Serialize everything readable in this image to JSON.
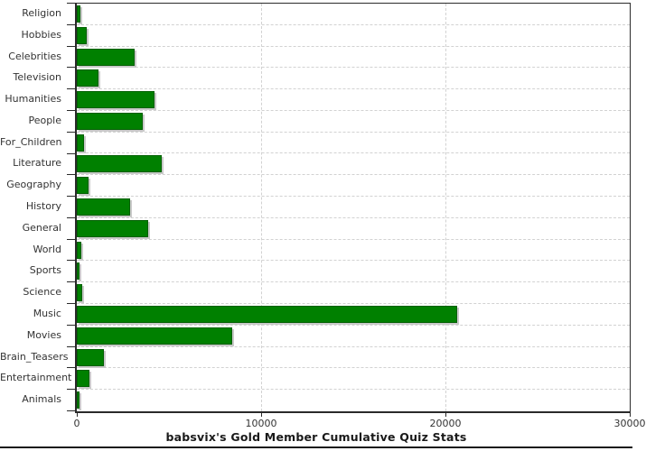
{
  "chart_data": {
    "type": "bar",
    "orientation": "horizontal",
    "title": "babsvix's Gold Member Cumulative Quiz Stats",
    "categories": [
      "Religion",
      "Hobbies",
      "Celebrities",
      "Television",
      "Humanities",
      "People",
      "For_Children",
      "Literature",
      "Geography",
      "History",
      "General",
      "World",
      "Sports",
      "Science",
      "Music",
      "Movies",
      "Brain_Teasers",
      "Entertainment",
      "Animals"
    ],
    "values": [
      160,
      470,
      3100,
      1130,
      4180,
      3520,
      330,
      4580,
      580,
      2820,
      3800,
      220,
      100,
      260,
      20570,
      8400,
      1440,
      660,
      70
    ],
    "xlim": [
      0,
      30000
    ],
    "x_ticks": [
      0,
      10000,
      20000,
      30000
    ],
    "x_tick_labels": [
      "0",
      "10000",
      "20000",
      "30000"
    ],
    "grid": "dashed",
    "legend": "none",
    "colors": {
      "bar_fill": "#008000",
      "bar_border": "#016001",
      "bar_shadow": "#c9c9c9",
      "gridline": "#d2d2d2",
      "axis": "#2a2a2a",
      "tick_label": "#333333",
      "title": "#1a1a1a",
      "background": "#ffffff"
    }
  }
}
